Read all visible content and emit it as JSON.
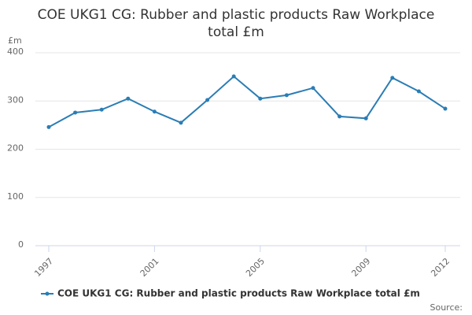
{
  "chart_data": {
    "type": "line",
    "title": "COE UKG1 CG: Rubber and plastic products Raw Workplace total £m",
    "y_axis_label": "£m",
    "source": "Source:",
    "x": [
      1997,
      1998,
      1999,
      2000,
      2001,
      2002,
      2003,
      2004,
      2005,
      2006,
      2007,
      2008,
      2009,
      2010,
      2011,
      2012
    ],
    "series": [
      {
        "name": "COE UKG1 CG: Rubber and plastic products Raw Workplace total £m",
        "color": "#2a7db5",
        "values": [
          246,
          276,
          282,
          305,
          278,
          255,
          302,
          351,
          305,
          312,
          327,
          268,
          264,
          348,
          320,
          284
        ]
      }
    ],
    "xlim": [
      1997,
      2012
    ],
    "xticks": [
      1997,
      2001,
      2005,
      2009,
      2012
    ],
    "ylim": [
      0,
      400
    ],
    "yticks": [
      0,
      100,
      200,
      300,
      400
    ],
    "grid": true
  }
}
